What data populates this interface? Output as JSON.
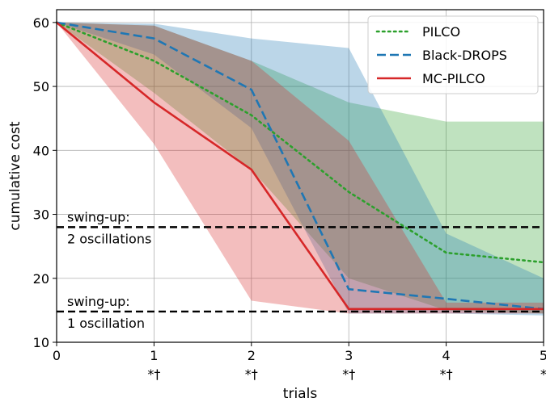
{
  "chart_data": {
    "type": "line",
    "xlabel": "trials",
    "ylabel": "cumulative cost",
    "xlim": [
      0,
      5
    ],
    "ylim": [
      10,
      62
    ],
    "x": [
      0,
      1,
      2,
      3,
      4,
      5
    ],
    "xticks": [
      0,
      1,
      2,
      3,
      4,
      5
    ],
    "yticks": [
      10,
      20,
      30,
      40,
      50,
      60
    ],
    "x_sublabels": [
      "",
      "*†",
      "*†",
      "*†",
      "*†",
      "*"
    ],
    "grid": true,
    "legend_position": "top-right",
    "series": [
      {
        "name": "PILCO",
        "color": "#2ca02c",
        "style": "dotted",
        "mean": [
          60,
          54,
          45.5,
          33.5,
          24,
          22.5
        ],
        "upper": [
          60,
          59.5,
          54,
          47.5,
          44.5,
          44.5
        ],
        "lower": [
          60,
          49,
          37,
          20,
          15,
          14.5
        ]
      },
      {
        "name": "Black-DROPS",
        "color": "#1f77b4",
        "style": "dashed",
        "mean": [
          60,
          57.5,
          49.5,
          18.3,
          16.8,
          15.2
        ],
        "upper": [
          60,
          59.8,
          57.5,
          56,
          27,
          20
        ],
        "lower": [
          60,
          55,
          43.5,
          14.5,
          14.5,
          14.2
        ]
      },
      {
        "name": "MC-PILCO",
        "color": "#d62728",
        "style": "solid",
        "mean": [
          60,
          47.5,
          37,
          15.2,
          15.2,
          15.2
        ],
        "upper": [
          60,
          59.5,
          54,
          41.5,
          16.2,
          16.2
        ],
        "lower": [
          60,
          41,
          16.5,
          14.5,
          14.5,
          14.5
        ]
      }
    ],
    "thresholds": [
      {
        "y": 28,
        "label_top": "swing-up:",
        "label_bottom": "2 oscillations"
      },
      {
        "y": 14.8,
        "label_top": "swing-up:",
        "label_bottom": "1 oscillation"
      }
    ]
  }
}
